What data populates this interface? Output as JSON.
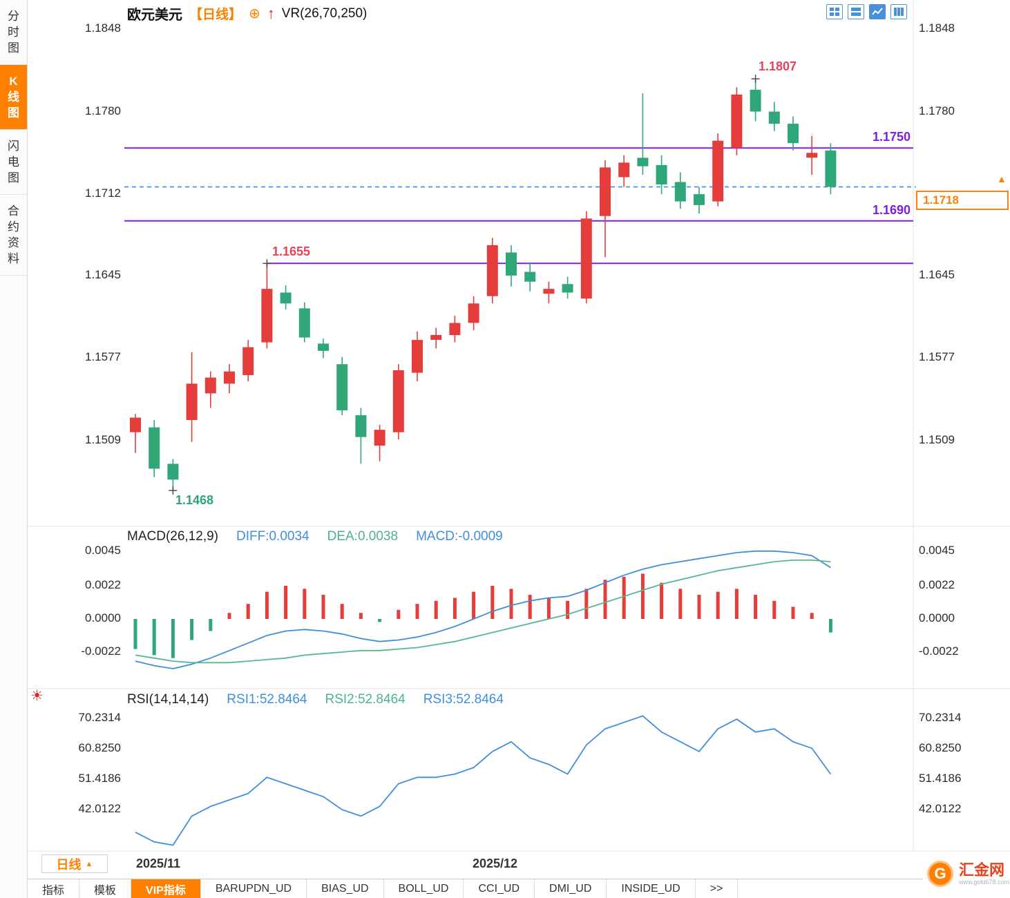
{
  "header": {
    "symbol": "欧元美元",
    "period": "【日线】",
    "plus_icon": "⊕",
    "arrow_icon": "↑",
    "indicator": "VR(26,70,250)"
  },
  "sidebar": {
    "tabs": [
      {
        "label": "分时图",
        "active": false
      },
      {
        "label": "K线图",
        "active": true
      },
      {
        "label": "闪电图",
        "active": false
      },
      {
        "label": "合约资料",
        "active": false
      }
    ]
  },
  "toolbar_icons": [
    "layout-grid",
    "layout-split",
    "layout-chart",
    "layout-columns"
  ],
  "price_box": {
    "value": "1.1718",
    "arrow": "▲"
  },
  "macd_header": {
    "name": "MACD(26,12,9)",
    "diff": "DIFF:0.0034",
    "dea": "DEA:0.0038",
    "macd": "MACD:-0.0009"
  },
  "rsi_header": {
    "name": "RSI(14,14,14)",
    "rsi1": "RSI1:52.8464",
    "rsi2": "RSI2:52.8464",
    "rsi3": "RSI3:52.8464"
  },
  "period_button": {
    "label": "日线",
    "caret": "▲"
  },
  "sun_icon": "☀",
  "bottom_bar": {
    "tabs": [
      {
        "label": "指标",
        "active": false
      },
      {
        "label": "模板",
        "active": false
      },
      {
        "label": "VIP指标",
        "active": true
      },
      {
        "label": "BARUPDN_UD",
        "active": false
      },
      {
        "label": "BIAS_UD",
        "active": false
      },
      {
        "label": "BOLL_UD",
        "active": false
      },
      {
        "label": "CCI_UD",
        "active": false
      },
      {
        "label": "DMI_UD",
        "active": false
      },
      {
        "label": "INSIDE_UD",
        "active": false
      },
      {
        "label": ">>",
        "active": false
      }
    ]
  },
  "logo": {
    "initial": "G",
    "text": "汇金网",
    "sub": "www.gold678.com"
  },
  "colors": {
    "up": "#e53c3c",
    "down": "#2fa779",
    "purple": "#7d1de8",
    "blue_dashed": "#3e8ede",
    "diff_line": "#3e8ede",
    "dea_line": "#53b98b",
    "rsi_line": "#3e8ede",
    "accent_orange": "#ff8000",
    "ann_red": "#e8415c",
    "ann_green": "#2ca37a"
  },
  "chart_data": [
    {
      "type": "candlestick",
      "title": "欧元美元 日线",
      "axis": {
        "vA": 1.1848,
        "yA": 42,
        "vB": 1.1509,
        "yB": 638
      },
      "ticks_left": [
        {
          "label": "1.1848",
          "value": 1.1848
        },
        {
          "label": "1.1780",
          "value": 1.178
        },
        {
          "label": "1.1712",
          "value": 1.1712
        },
        {
          "label": "1.1645",
          "value": 1.1645
        },
        {
          "label": "1.1577",
          "value": 1.1577
        },
        {
          "label": "1.1509",
          "value": 1.1509
        }
      ],
      "ticks_right": [
        {
          "label": "1.1848",
          "value": 1.1848
        },
        {
          "label": "1.1780",
          "value": 1.178
        },
        {
          "label": "1.1645",
          "value": 1.1645
        },
        {
          "label": "1.1577",
          "value": 1.1577
        },
        {
          "label": "1.1509",
          "value": 1.1509
        }
      ],
      "levels": [
        {
          "price": 1.175,
          "label": "1.1750",
          "from_index": null
        },
        {
          "price": 1.169,
          "label": "1.1690",
          "from_index": null
        },
        {
          "price": 1.1655,
          "label": null,
          "from_index": 7
        }
      ],
      "current_price": 1.1718,
      "high_annotation": {
        "index": 33,
        "price": 1.1807,
        "label": "1.1807"
      },
      "mid_annotation": {
        "index": 7,
        "price": 1.1655,
        "label": "1.1655"
      },
      "low_annotation": {
        "index": 2,
        "price": 1.1468,
        "label": "1.1468"
      },
      "x_axis_labels": [
        {
          "label": "2025/11",
          "index": 0
        },
        {
          "label": "2025/12",
          "index": 18
        }
      ],
      "candles": [
        [
          1.1516,
          1.1531,
          1.1499,
          1.1528
        ],
        [
          1.152,
          1.1526,
          1.1479,
          1.1486
        ],
        [
          1.149,
          1.1494,
          1.1468,
          1.1477
        ],
        [
          1.1526,
          1.1582,
          1.1508,
          1.1556
        ],
        [
          1.1548,
          1.1566,
          1.1536,
          1.1561
        ],
        [
          1.1556,
          1.1572,
          1.1548,
          1.1566
        ],
        [
          1.1563,
          1.1592,
          1.1558,
          1.1586
        ],
        [
          1.159,
          1.1655,
          1.1585,
          1.1634
        ],
        [
          1.1631,
          1.1637,
          1.1617,
          1.1622
        ],
        [
          1.1618,
          1.1623,
          1.159,
          1.1594
        ],
        [
          1.1589,
          1.1593,
          1.1577,
          1.1583
        ],
        [
          1.1572,
          1.1578,
          1.153,
          1.1534
        ],
        [
          1.153,
          1.1536,
          1.149,
          1.1512
        ],
        [
          1.1505,
          1.1522,
          1.1492,
          1.1518
        ],
        [
          1.1516,
          1.1572,
          1.151,
          1.1567
        ],
        [
          1.1565,
          1.1599,
          1.1558,
          1.1592
        ],
        [
          1.1592,
          1.1602,
          1.1585,
          1.1596
        ],
        [
          1.1596,
          1.1612,
          1.159,
          1.1606
        ],
        [
          1.1606,
          1.1628,
          1.16,
          1.1622
        ],
        [
          1.1628,
          1.1676,
          1.1622,
          1.167
        ],
        [
          1.1664,
          1.167,
          1.1636,
          1.1645
        ],
        [
          1.1648,
          1.1656,
          1.1632,
          1.164
        ],
        [
          1.163,
          1.164,
          1.1622,
          1.1634
        ],
        [
          1.1638,
          1.1644,
          1.1626,
          1.1631
        ],
        [
          1.1626,
          1.1698,
          1.1622,
          1.1692
        ],
        [
          1.1694,
          1.174,
          1.166,
          1.1734
        ],
        [
          1.1726,
          1.1744,
          1.1718,
          1.1738
        ],
        [
          1.1742,
          1.1795,
          1.1728,
          1.1735
        ],
        [
          1.1736,
          1.1744,
          1.1712,
          1.172
        ],
        [
          1.1722,
          1.173,
          1.17,
          1.1706
        ],
        [
          1.1712,
          1.1718,
          1.1696,
          1.1703
        ],
        [
          1.1706,
          1.1762,
          1.1702,
          1.1756
        ],
        [
          1.175,
          1.18,
          1.1744,
          1.1794
        ],
        [
          1.1798,
          1.1807,
          1.1772,
          1.178
        ],
        [
          1.178,
          1.1788,
          1.1764,
          1.177
        ],
        [
          1.177,
          1.1776,
          1.1748,
          1.1754
        ],
        [
          1.1742,
          1.176,
          1.1728,
          1.1746
        ],
        [
          1.1748,
          1.1754,
          1.1712,
          1.1718
        ]
      ]
    },
    {
      "type": "macd",
      "axis": {
        "vA": 0.0022,
        "yA": 848,
        "vB": -0.0022,
        "yB": 944
      },
      "ticks": [
        {
          "label": "0.0045",
          "value": 0.0045
        },
        {
          "label": "0.0022",
          "value": 0.0022
        },
        {
          "label": "0.0000",
          "value": 0
        },
        {
          "label": "-0.0022",
          "value": -0.0022
        }
      ],
      "histogram": [
        -0.002,
        -0.0024,
        -0.0026,
        -0.0014,
        -0.0008,
        0.0004,
        0.001,
        0.0018,
        0.0022,
        0.002,
        0.0016,
        0.001,
        0.0004,
        -0.0002,
        0.0006,
        0.001,
        0.0012,
        0.0014,
        0.0018,
        0.0022,
        0.002,
        0.0016,
        0.0014,
        0.0012,
        0.002,
        0.0026,
        0.0028,
        0.003,
        0.0024,
        0.002,
        0.0016,
        0.0018,
        0.002,
        0.0016,
        0.0012,
        0.0008,
        0.0004,
        -0.0009
      ],
      "diff": [
        -0.0028,
        -0.0031,
        -0.0033,
        -0.003,
        -0.0026,
        -0.0021,
        -0.0016,
        -0.0011,
        -0.0008,
        -0.0007,
        -0.0008,
        -0.001,
        -0.0013,
        -0.0015,
        -0.0014,
        -0.0012,
        -0.0009,
        -0.0005,
        0.0,
        0.0005,
        0.0009,
        0.0012,
        0.0014,
        0.0015,
        0.0019,
        0.0024,
        0.0029,
        0.0033,
        0.0036,
        0.0038,
        0.004,
        0.0042,
        0.0044,
        0.0045,
        0.0045,
        0.0044,
        0.0042,
        0.0034
      ],
      "dea": [
        -0.0024,
        -0.0026,
        -0.0028,
        -0.0029,
        -0.0029,
        -0.0029,
        -0.0028,
        -0.0027,
        -0.0026,
        -0.0024,
        -0.0023,
        -0.0022,
        -0.0021,
        -0.0021,
        -0.002,
        -0.0019,
        -0.0017,
        -0.0015,
        -0.0012,
        -0.0009,
        -0.0006,
        -0.0003,
        0.0,
        0.0003,
        0.0007,
        0.0011,
        0.0015,
        0.0019,
        0.0023,
        0.0026,
        0.0029,
        0.0032,
        0.0034,
        0.0036,
        0.0038,
        0.0039,
        0.0039,
        0.0038
      ]
    },
    {
      "type": "line",
      "name": "RSI",
      "axis": {
        "vA": 70.2314,
        "yA": 1040,
        "vB": 42.0122,
        "yB": 1172
      },
      "ticks": [
        {
          "label": "70.2314",
          "value": 70.2314
        },
        {
          "label": "60.8250",
          "value": 60.825
        },
        {
          "label": "51.4186",
          "value": 51.4186
        },
        {
          "label": "42.0122",
          "value": 42.0122
        }
      ],
      "values": [
        35,
        32,
        31,
        40,
        43,
        45,
        47,
        52,
        50,
        48,
        46,
        42,
        40,
        43,
        50,
        52,
        52,
        53,
        55,
        60,
        63,
        58,
        56,
        53,
        62,
        67,
        69,
        71,
        66,
        63,
        60,
        67,
        70,
        66,
        67,
        63,
        61,
        53
      ]
    }
  ]
}
